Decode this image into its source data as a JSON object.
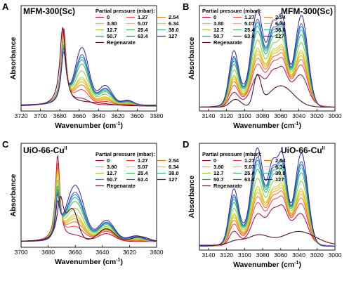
{
  "chart_data": [
    {
      "panel": "A",
      "type": "line",
      "title": "MFM-300(Sc)",
      "xlabel": "Wavenumber (cm",
      "xlabel_sup": "-1",
      "xlabel_end": ")",
      "ylabel": "Absorbance",
      "xlim": [
        3720,
        3580
      ],
      "xticks": [
        "3720",
        "3700",
        "3680",
        "3660",
        "3640",
        "3620",
        "3600",
        "3580"
      ],
      "legend": {
        "title": "Partial pressure (mbar):",
        "placement": "top-right",
        "entries": [
          "0",
          "1.27",
          "2.54",
          "3.80",
          "5.07",
          "6.34",
          "12.7",
          "25.4",
          "38.0",
          "50.7",
          "63.4",
          "127"
        ],
        "regen": "Regenarate"
      },
      "peaks": [
        {
          "center": 3676,
          "trend": "decreasing",
          "range": [
            0.6,
            0.88
          ]
        },
        {
          "center": 3657,
          "trend": "increasing",
          "range": [
            0.05,
            0.58
          ]
        },
        {
          "center": 3635,
          "trend": "increasing",
          "range": [
            0.0,
            0.18
          ]
        }
      ]
    },
    {
      "panel": "B",
      "type": "line",
      "title": "MFM-300(Sc)",
      "xlabel": "Wavenumber (cm",
      "xlabel_sup": "-1",
      "xlabel_end": ")",
      "ylabel": "Absorbance",
      "xlim": [
        3150,
        3000
      ],
      "xticks": [
        "3140",
        "3120",
        "3100",
        "3080",
        "3060",
        "3040",
        "3020",
        "3000"
      ],
      "legend": {
        "title": "Partial pressure (mbar):",
        "placement": "top-left",
        "entries": [
          "0",
          "1.27",
          "2.54",
          "3.80",
          "5.07",
          "6.34",
          "12.7",
          "25.4",
          "38.0",
          "50.7",
          "63.4",
          "127"
        ],
        "regen": "Regenarate"
      },
      "bands": [
        3112,
        3086,
        3069,
        3058,
        3037
      ]
    },
    {
      "panel": "C",
      "type": "line",
      "title": "UiO-66-Cu",
      "title_sup": "II",
      "xlabel": "Wavenumber (cm",
      "xlabel_sup": "-1",
      "xlabel_end": ")",
      "ylabel": "Absorbance",
      "xlim": [
        3700,
        3600
      ],
      "xticks": [
        "3700",
        "3680",
        "3660",
        "3640",
        "3620",
        "3600"
      ],
      "legend": {
        "title": "Partial pressure (mbar):",
        "placement": "top-right",
        "entries": [
          "0",
          "1.27",
          "2.54",
          "3.80",
          "5.07",
          "6.34",
          "12.7",
          "25.4",
          "38.0",
          "50.7",
          "63.4",
          "127"
        ],
        "regen": "Regenarate"
      },
      "peaks": [
        {
          "center": 3673,
          "trend": "decreasing",
          "range": [
            0.35,
            0.9
          ]
        },
        {
          "center": 3660,
          "trend": "increasing",
          "range": [
            0.05,
            0.58
          ]
        },
        {
          "center": 3637,
          "trend": "increasing",
          "range": [
            0.1,
            0.22
          ]
        }
      ]
    },
    {
      "panel": "D",
      "type": "line",
      "title": "UiO-66-Cu",
      "title_sup": "II",
      "xlabel": "Wavenumber (cm",
      "xlabel_sup": "-1",
      "xlabel_end": ")",
      "ylabel": "Absorbance",
      "xlim": [
        3150,
        3000
      ],
      "xticks": [
        "3140",
        "3120",
        "3100",
        "3080",
        "3060",
        "3040",
        "3020",
        "3000"
      ],
      "legend": {
        "title": "Partial pressure (mbar):",
        "placement": "top-left",
        "entries": [
          "0",
          "1.27",
          "2.54",
          "3.80",
          "5.07",
          "6.34",
          "12.7",
          "25.4",
          "38.0",
          "50.7",
          "63.4",
          "127"
        ],
        "regen": "Regenarate"
      },
      "bands": [
        3112,
        3086,
        3069,
        3058,
        3037
      ]
    }
  ],
  "series_colors": [
    "#b3003a",
    "#ff3a3a",
    "#e8761a",
    "#ffa526",
    "#e6c619",
    "#c2d321",
    "#88cc33",
    "#35b34a",
    "#24aa9e",
    "#1f8fd0",
    "#3559c4",
    "#3a1f9e"
  ],
  "regen_color": "#5a0f2e"
}
